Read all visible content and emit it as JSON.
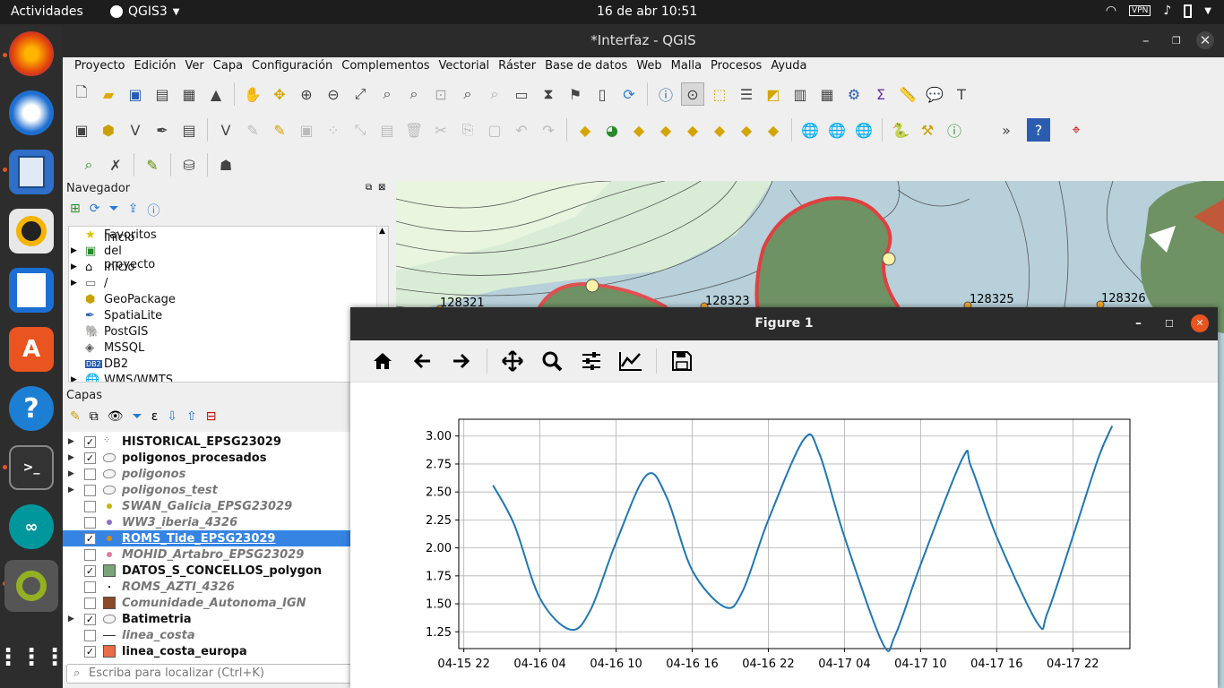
{
  "topbar": {
    "activities": "Actividades",
    "app_name": "QGIS3",
    "clock": "16 de abr  10:51"
  },
  "window": {
    "title": "*Interfaz - QGIS"
  },
  "menu": [
    "Proyecto",
    "Edición",
    "Ver",
    "Capa",
    "Configuración",
    "Complementos",
    "Vectorial",
    "Ráster",
    "Base de datos",
    "Web",
    "Malla",
    "Procesos",
    "Ayuda"
  ],
  "navigator": {
    "title": "Navegador",
    "items": [
      "Favoritos",
      "Inicio del proyecto",
      "Inicio",
      "/",
      "GeoPackage",
      "SpatiaLite",
      "PostGIS",
      "MSSQL",
      "DB2",
      "WMS/WMTS"
    ]
  },
  "layers_panel": {
    "title": "Capas",
    "layers": [
      {
        "name": "HISTORICAL_EPSG23029",
        "checked": true,
        "style": "bold",
        "expand": true
      },
      {
        "name": "poligonos_procesados",
        "checked": true,
        "style": "bold",
        "expand": true
      },
      {
        "name": "poligonos",
        "checked": false,
        "style": "ital",
        "expand": true
      },
      {
        "name": "poligonos_test",
        "checked": false,
        "style": "ital",
        "expand": true
      },
      {
        "name": "SWAN_Galicia_EPSG23029",
        "checked": false,
        "style": "ital",
        "expand": false
      },
      {
        "name": "WW3_iberia_4326",
        "checked": false,
        "style": "ital",
        "expand": false
      },
      {
        "name": "ROMS_Tide_EPSG23029",
        "checked": true,
        "style": "selected",
        "expand": false
      },
      {
        "name": "MOHID_Artabro_EPSG23029",
        "checked": false,
        "style": "ital",
        "expand": false
      },
      {
        "name": "DATOS_S_CONCELLOS_polygon",
        "checked": true,
        "style": "bold",
        "expand": false
      },
      {
        "name": "ROMS_AZTI_4326",
        "checked": false,
        "style": "ital",
        "expand": false
      },
      {
        "name": "Comunidade_Autonoma_IGN",
        "checked": false,
        "style": "ital",
        "expand": false
      },
      {
        "name": "Batimetria",
        "checked": true,
        "style": "bold",
        "expand": true
      },
      {
        "name": "linea_costa",
        "checked": false,
        "style": "ital",
        "expand": false
      },
      {
        "name": "linea_costa_europa",
        "checked": true,
        "style": "bold",
        "expand": false
      }
    ]
  },
  "search": {
    "placeholder": "Escriba para localizar (Ctrl+K)"
  },
  "map_labels": [
    "128321",
    "128323",
    "128325",
    "128326"
  ],
  "figure": {
    "title": "Figure 1"
  },
  "chart_data": {
    "type": "line",
    "x_ticks": [
      "04-15 22",
      "04-16 04",
      "04-16 10",
      "04-16 16",
      "04-16 22",
      "04-17 04",
      "04-17 10",
      "04-17 16",
      "04-17 22"
    ],
    "y_ticks": [
      "1.25",
      "1.50",
      "1.75",
      "2.00",
      "2.25",
      "2.50",
      "2.75",
      "3.00"
    ],
    "ylim": [
      1.1,
      3.15
    ],
    "xlim_hours": [
      -0.4,
      52.5
    ],
    "grid": true,
    "series": [
      {
        "x_hours": [
          2.3,
          4,
          6,
          8.4,
          10,
          12,
          14.4,
          16,
          18,
          20.6,
          22,
          24,
          26.8,
          28,
          30,
          33,
          34,
          36,
          39.3,
          40,
          42,
          45.2,
          46,
          48,
          50,
          51.1
        ],
        "values": [
          2.56,
          2.2,
          1.55,
          1.27,
          1.45,
          2.05,
          2.65,
          2.45,
          1.8,
          1.47,
          1.62,
          2.25,
          2.97,
          2.85,
          2.1,
          1.15,
          1.22,
          1.85,
          2.8,
          2.72,
          2.1,
          1.33,
          1.42,
          2.1,
          2.8,
          3.09
        ],
        "color": "#1f77b4"
      }
    ]
  }
}
